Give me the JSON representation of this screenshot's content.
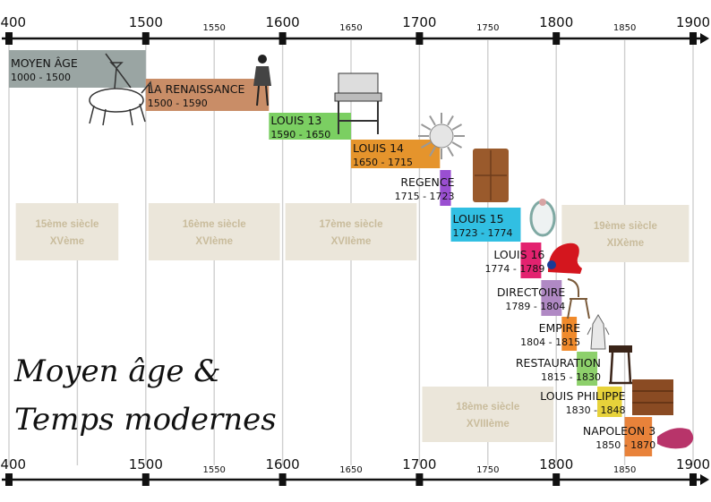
{
  "title_lines": [
    "Moyen âge &",
    "Temps modernes"
  ],
  "axis": {
    "min": 1400,
    "max": 1900,
    "major_ticks": [
      "1400",
      "1500",
      "1600",
      "1700",
      "1800",
      "1900"
    ],
    "minor_ticks": [
      "1550",
      "1650",
      "1750",
      "1850"
    ]
  },
  "centuries": [
    {
      "label": "15ème siècle",
      "sub": "XVème",
      "start": 1405,
      "end": 1480
    },
    {
      "label": "16ème siècle",
      "sub": "XVIème",
      "start": 1502,
      "end": 1598
    },
    {
      "label": "17ème siècle",
      "sub": "XVIIème",
      "start": 1602,
      "end": 1698
    },
    {
      "label": "18ème siècle",
      "sub": "XVIIIème",
      "start": 1702,
      "end": 1798
    },
    {
      "label": "19ème siècle",
      "sub": "XIXème",
      "start": 1804,
      "end": 1897
    }
  ],
  "periods": [
    {
      "name": "MOYEN ÂGE",
      "range": "1000 - 1500",
      "start": 1400,
      "end": 1500,
      "color": "#9aa5a3",
      "text": "inside",
      "image": "knight-on-horse"
    },
    {
      "name": "LA RENAISSANCE",
      "range": "1500 - 1590",
      "start": 1500,
      "end": 1590,
      "color": "#c98d67",
      "text": "inside",
      "image": "renaissance-figure"
    },
    {
      "name": "LOUIS 13",
      "range": "1590 - 1650",
      "start": 1590,
      "end": 1650,
      "color": "#7bcf62",
      "text": "inside",
      "image": "louis-xiii-chair"
    },
    {
      "name": "LOUIS 14",
      "range": "1650 - 1715",
      "start": 1650,
      "end": 1715,
      "color": "#e5942c",
      "text": "inside",
      "image": "sun-emblem"
    },
    {
      "name": "REGENCE",
      "range": "1715 - 1723",
      "start": 1715,
      "end": 1723,
      "color": "#9a4fd1",
      "text": "left",
      "image": "regence-cabinet"
    },
    {
      "name": "LOUIS 15",
      "range": "1723 - 1774",
      "start": 1723,
      "end": 1774,
      "color": "#31bfe2",
      "text": "inside",
      "image": "rococo-medallion"
    },
    {
      "name": "LOUIS 16",
      "range": "1774 - 1789",
      "start": 1774,
      "end": 1789,
      "color": "#e3226f",
      "text": "left",
      "image": "phrygian-cap"
    },
    {
      "name": "DIRECTOIRE",
      "range": "1789 - 1804",
      "start": 1789,
      "end": 1804,
      "color": "#b089c4",
      "text": "left",
      "image": "directoire-chair"
    },
    {
      "name": "EMPIRE",
      "range": "1804 - 1815",
      "start": 1804,
      "end": 1815,
      "color": "#f08a2b",
      "text": "left",
      "image": "imperial-eagle"
    },
    {
      "name": "RESTAURATION",
      "range": "1815 - 1830",
      "start": 1815,
      "end": 1830,
      "color": "#8dd06b",
      "text": "left",
      "image": "restauration-table"
    },
    {
      "name": "LOUIS PHILIPPE",
      "range": "1830 - 1848",
      "start": 1830,
      "end": 1848,
      "color": "#e7d23a",
      "text": "left",
      "image": "louis-philippe-commode"
    },
    {
      "name": "NAPOLEON 3",
      "range": "1850 - 1870",
      "start": 1850,
      "end": 1870,
      "color": "#e8823a",
      "text": "left",
      "image": "napoleon-iii-pouf"
    }
  ]
}
